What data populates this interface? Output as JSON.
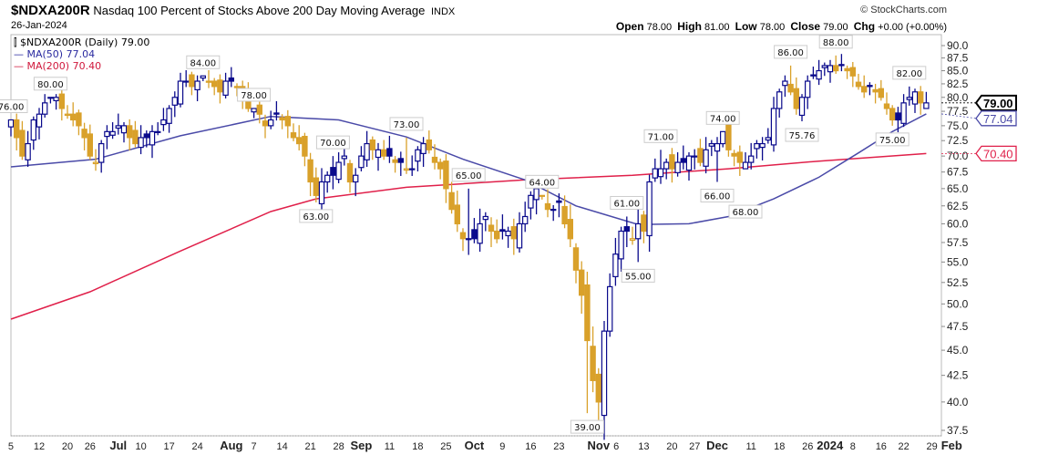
{
  "header": {
    "symbol": "$NDXA200R",
    "name": "Nasdaq 100 Percent of Stocks Above 200 Day Moving Average",
    "exchange": "INDX",
    "date": "26-Jan-2024",
    "copyright": "© StockCharts.com",
    "open_label": "Open",
    "open": "78.00",
    "high_label": "High",
    "high": "81.00",
    "low_label": "Low",
    "low": "78.00",
    "close_label": "Close",
    "close": "79.00",
    "chg_label": "Chg",
    "chg": "+0.00 (+0.00%)"
  },
  "legend": {
    "price": "$NDXA200R (Daily) 79.00",
    "ma50": "MA(50) 77.04",
    "ma200": "MA(200) 70.40"
  },
  "colors": {
    "up": "#0a0a8c",
    "down": "#d9a12a",
    "ma50": "#4a4aa8",
    "ma200": "#e0204a"
  },
  "chart_data": {
    "type": "candlestick",
    "title": "$NDXA200R Nasdaq 100 Percent of Stocks Above 200 Day Moving Average",
    "yscale": "log",
    "ylim": [
      37.5,
      90
    ],
    "yticks": [
      "37.5",
      "40.0",
      "42.5",
      "45.0",
      "47.5",
      "50.0",
      "52.5",
      "55.0",
      "57.5",
      "60.0",
      "62.5",
      "65.0",
      "67.5",
      "70.0",
      "72.5",
      "75.0",
      "77.5",
      "80.0",
      "82.5",
      "85.0",
      "87.5",
      "90.0"
    ],
    "xticks": [
      {
        "i": 0,
        "label": "5"
      },
      {
        "i": 5,
        "label": "12"
      },
      {
        "i": 10,
        "label": "20"
      },
      {
        "i": 14,
        "label": "26"
      },
      {
        "i": 19,
        "label": "Jul",
        "bold": true
      },
      {
        "i": 23,
        "label": "10"
      },
      {
        "i": 28,
        "label": "17"
      },
      {
        "i": 33,
        "label": "24"
      },
      {
        "i": 39,
        "label": "Aug",
        "bold": true
      },
      {
        "i": 43,
        "label": "7"
      },
      {
        "i": 48,
        "label": "14"
      },
      {
        "i": 53,
        "label": "21"
      },
      {
        "i": 58,
        "label": "28"
      },
      {
        "i": 62,
        "label": "Sep",
        "bold": true
      },
      {
        "i": 67,
        "label": "11"
      },
      {
        "i": 72,
        "label": "18"
      },
      {
        "i": 77,
        "label": "25"
      },
      {
        "i": 82,
        "label": "Oct",
        "bold": true
      },
      {
        "i": 87,
        "label": "9"
      },
      {
        "i": 92,
        "label": "16"
      },
      {
        "i": 97,
        "label": "23"
      },
      {
        "i": 104,
        "label": "Nov",
        "bold": true
      },
      {
        "i": 107,
        "label": "6"
      },
      {
        "i": 112,
        "label": "13"
      },
      {
        "i": 117,
        "label": "20"
      },
      {
        "i": 121,
        "label": "27"
      },
      {
        "i": 125,
        "label": "Dec",
        "bold": true
      },
      {
        "i": 131,
        "label": "11"
      },
      {
        "i": 136,
        "label": "18"
      },
      {
        "i": 141,
        "label": "26"
      },
      {
        "i": 144.5,
        "label": "2024",
        "bold": true
      },
      {
        "i": 149,
        "label": "8"
      },
      {
        "i": 154,
        "label": "16"
      },
      {
        "i": 158,
        "label": "22"
      },
      {
        "i": 163,
        "label": "29"
      },
      {
        "i": 166,
        "label": "Feb",
        "bold": true
      }
    ],
    "closes": [
      76,
      73,
      70,
      72,
      76,
      77,
      79,
      80,
      80,
      78,
      77,
      76,
      75,
      73,
      70,
      69,
      72,
      74,
      74,
      75,
      75,
      73,
      72,
      73,
      73,
      74,
      74,
      76,
      78,
      80,
      83,
      83,
      82,
      83,
      84,
      83,
      82,
      81,
      83,
      83,
      82,
      80,
      78,
      78,
      77,
      75,
      76,
      77,
      76,
      75,
      73,
      72,
      70,
      66,
      64,
      66,
      67,
      67,
      69,
      70,
      66,
      67,
      70,
      72,
      71,
      71,
      70,
      70,
      69,
      69,
      68,
      68,
      71,
      72,
      71,
      69,
      68,
      65,
      62,
      60,
      58,
      58,
      58,
      60,
      61,
      59,
      58,
      59,
      59,
      58,
      60,
      61,
      64,
      65,
      64,
      62,
      62,
      63,
      60,
      58,
      54,
      51,
      46,
      42,
      40,
      47,
      52,
      56,
      59,
      59,
      58,
      60,
      59,
      66,
      68,
      68,
      69,
      68,
      69,
      69,
      70,
      70,
      69,
      71,
      72,
      72,
      74,
      71,
      70,
      69,
      69,
      70,
      72,
      72,
      73,
      78,
      81,
      83,
      81,
      78,
      80,
      83,
      84,
      85,
      86,
      86,
      85,
      86,
      85,
      84,
      82,
      81,
      82,
      81,
      80,
      78,
      76,
      76,
      79,
      80,
      81,
      79,
      79
    ],
    "annotations": [
      {
        "i": 0,
        "value": "76.00",
        "side": "high"
      },
      {
        "i": 7,
        "value": "80.00",
        "side": "high"
      },
      {
        "i": 34,
        "value": "84.00",
        "side": "high"
      },
      {
        "i": 43,
        "value": "78.00",
        "side": "high"
      },
      {
        "i": 54,
        "value": "63.00",
        "side": "low"
      },
      {
        "i": 57,
        "value": "70.00",
        "side": "high"
      },
      {
        "i": 70,
        "value": "73.00",
        "side": "high"
      },
      {
        "i": 81,
        "value": "65.00",
        "side": "high"
      },
      {
        "i": 94,
        "value": "64.00",
        "side": "high"
      },
      {
        "i": 102,
        "value": "39.00",
        "side": "low"
      },
      {
        "i": 109,
        "value": "61.00",
        "side": "high"
      },
      {
        "i": 111,
        "value": "55.00",
        "side": "low"
      },
      {
        "i": 115,
        "value": "71.00",
        "side": "high"
      },
      {
        "i": 125,
        "value": "66.00",
        "side": "low"
      },
      {
        "i": 126,
        "value": "74.00",
        "side": "high"
      },
      {
        "i": 130,
        "value": "68.00",
        "side": "low"
      },
      {
        "i": 138,
        "value": "86.00",
        "side": "high"
      },
      {
        "i": 140,
        "value": "75.76",
        "side": "low"
      },
      {
        "i": 146,
        "value": "88.00",
        "side": "high"
      },
      {
        "i": 156,
        "value": "75.00",
        "side": "low"
      },
      {
        "i": 159,
        "value": "82.00",
        "side": "high"
      }
    ],
    "ma50": [
      [
        0,
        68.3
      ],
      [
        15,
        69.5
      ],
      [
        30,
        73.3
      ],
      [
        46,
        76.6
      ],
      [
        58,
        76
      ],
      [
        70,
        73.1
      ],
      [
        80,
        69.5
      ],
      [
        91,
        66.3
      ],
      [
        100,
        62.5
      ],
      [
        111,
        59.9
      ],
      [
        120,
        60
      ],
      [
        127,
        61
      ],
      [
        135,
        63.5
      ],
      [
        143,
        66.7
      ],
      [
        150,
        70.5
      ],
      [
        156,
        74
      ],
      [
        162,
        77.04
      ]
    ],
    "ma200": [
      [
        0,
        48.3
      ],
      [
        14,
        51.4
      ],
      [
        30,
        56.4
      ],
      [
        46,
        61.7
      ],
      [
        54,
        63.5
      ],
      [
        70,
        65.2
      ],
      [
        91,
        66.3
      ],
      [
        110,
        67
      ],
      [
        127,
        68
      ],
      [
        143,
        69.2
      ],
      [
        162,
        70.4
      ]
    ],
    "value_tags": [
      {
        "value": "79.00",
        "series": "price"
      },
      {
        "value": "77.04",
        "series": "ma50"
      },
      {
        "value": "70.40",
        "series": "ma200"
      }
    ]
  }
}
